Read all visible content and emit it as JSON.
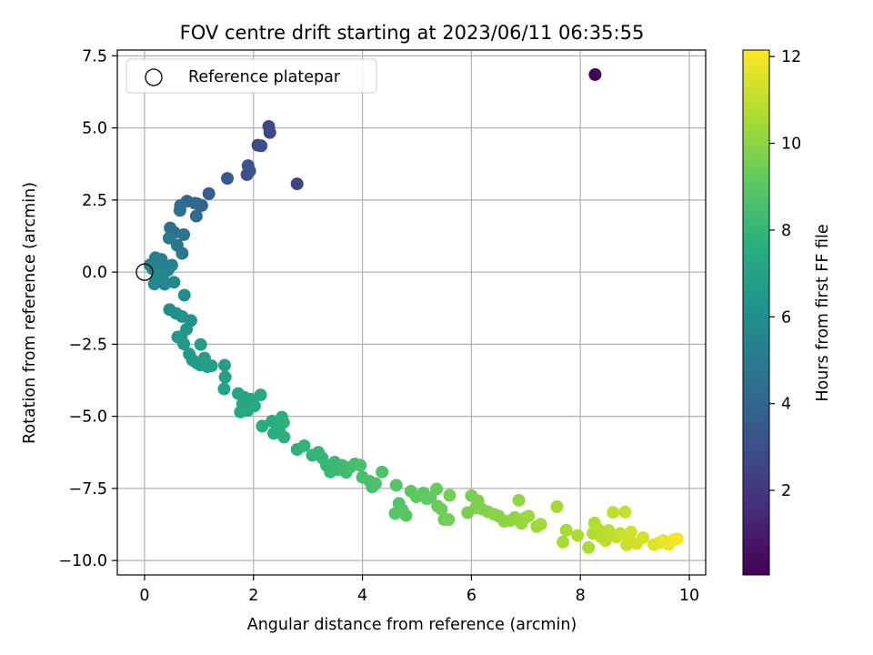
{
  "chart_data": {
    "type": "scatter",
    "title": "FOV centre drift starting at 2023/06/11 06:35:55",
    "xlabel": "Angular distance from reference (arcmin)",
    "ylabel": "Rotation from reference (arcmin)",
    "xlim": [
      -0.5,
      10.3
    ],
    "ylim": [
      -10.5,
      7.7
    ],
    "xticks": [
      0,
      2,
      4,
      6,
      8,
      10
    ],
    "xtick_labels": [
      "0",
      "2",
      "4",
      "6",
      "8",
      "10"
    ],
    "yticks": [
      7.5,
      5.0,
      2.5,
      0.0,
      -2.5,
      -5.0,
      -7.5,
      -10.0
    ],
    "ytick_labels": [
      "7.5",
      "5.0",
      "2.5",
      "0.0",
      "−2.5",
      "−5.0",
      "−7.5",
      "−10.0"
    ],
    "grid": true,
    "legend": {
      "position": "upper-left",
      "entries": [
        {
          "label": "Reference platepar",
          "marker": "open-circle"
        }
      ]
    },
    "reference_point": {
      "x": 0,
      "y": 0
    },
    "colorbar": {
      "label": "Hours from first FF file",
      "colormap": "viridis",
      "range": [
        0.05,
        12.15
      ],
      "ticks": [
        2,
        4,
        6,
        8,
        10,
        12
      ],
      "tick_labels": [
        "2",
        "4",
        "6",
        "8",
        "10",
        "12"
      ]
    },
    "points": [
      [
        8.27,
        6.85,
        0.1
      ],
      [
        2.8,
        3.06,
        2.5
      ],
      [
        2.3,
        4.84,
        2.6
      ],
      [
        2.28,
        5.05,
        2.7
      ],
      [
        2.08,
        4.4,
        2.8
      ],
      [
        2.14,
        4.38,
        2.9
      ],
      [
        1.88,
        3.38,
        3.0
      ],
      [
        1.93,
        3.51,
        3.1
      ],
      [
        1.9,
        3.69,
        3.2
      ],
      [
        1.52,
        3.25,
        3.4
      ],
      [
        1.18,
        2.72,
        3.6
      ],
      [
        0.97,
        2.37,
        3.8
      ],
      [
        1.05,
        2.31,
        3.9
      ],
      [
        0.78,
        2.46,
        4.0
      ],
      [
        0.92,
        2.39,
        4.1
      ],
      [
        0.95,
        1.94,
        4.2
      ],
      [
        0.66,
        2.31,
        4.3
      ],
      [
        0.65,
        2.14,
        4.4
      ],
      [
        0.47,
        1.53,
        4.5
      ],
      [
        0.55,
        1.37,
        4.6
      ],
      [
        0.72,
        1.3,
        4.7
      ],
      [
        0.6,
        0.93,
        4.8
      ],
      [
        0.69,
        0.65,
        4.9
      ],
      [
        0.45,
        1.18,
        5.0
      ],
      [
        0.31,
        0.44,
        5.1
      ],
      [
        0.2,
        0.5,
        5.2
      ],
      [
        0.38,
        0.15,
        5.2
      ],
      [
        0.1,
        0.25,
        5.3
      ],
      [
        0.26,
        0.33,
        5.3
      ],
      [
        0.5,
        0.24,
        5.4
      ],
      [
        0.43,
        0.07,
        5.4
      ],
      [
        0.15,
        0.11,
        5.5
      ],
      [
        0.33,
        -0.2,
        5.5
      ],
      [
        0.22,
        -0.3,
        5.6
      ],
      [
        0.37,
        -0.42,
        5.6
      ],
      [
        0.18,
        -0.41,
        5.7
      ],
      [
        0.54,
        -0.35,
        5.7
      ],
      [
        0.28,
        -0.05,
        5.8
      ],
      [
        0.46,
        -1.3,
        5.9
      ],
      [
        0.73,
        -0.8,
        6.0
      ],
      [
        0.58,
        -1.43,
        6.1
      ],
      [
        0.69,
        -1.54,
        6.2
      ],
      [
        0.85,
        -1.68,
        6.2
      ],
      [
        0.77,
        -1.98,
        6.3
      ],
      [
        0.67,
        -2.24,
        6.3
      ],
      [
        0.72,
        -2.49,
        6.4
      ],
      [
        0.61,
        -2.25,
        6.4
      ],
      [
        0.82,
        -2.84,
        6.5
      ],
      [
        0.88,
        -3.05,
        6.5
      ],
      [
        0.96,
        -3.15,
        6.6
      ],
      [
        1.02,
        -3.22,
        6.6
      ],
      [
        1.15,
        -3.28,
        6.7
      ],
      [
        1.03,
        -2.51,
        6.7
      ],
      [
        1.23,
        -3.25,
        6.8
      ],
      [
        1.1,
        -2.98,
        6.8
      ],
      [
        1.47,
        -3.23,
        6.9
      ],
      [
        1.48,
        -3.64,
        6.9
      ],
      [
        1.46,
        -4.05,
        7.0
      ],
      [
        1.72,
        -4.21,
        7.1
      ],
      [
        1.83,
        -4.34,
        7.1
      ],
      [
        1.95,
        -4.41,
        7.2
      ],
      [
        1.8,
        -4.57,
        7.2
      ],
      [
        1.89,
        -4.8,
        7.3
      ],
      [
        1.76,
        -4.85,
        7.3
      ],
      [
        2.02,
        -4.64,
        7.4
      ],
      [
        2.13,
        -4.26,
        7.4
      ],
      [
        2.16,
        -5.34,
        7.5
      ],
      [
        2.34,
        -5.17,
        7.5
      ],
      [
        2.37,
        -5.59,
        7.6
      ],
      [
        2.47,
        -5.47,
        7.6
      ],
      [
        2.55,
        -5.22,
        7.7
      ],
      [
        2.52,
        -5.03,
        7.7
      ],
      [
        2.56,
        -5.72,
        7.8
      ],
      [
        2.8,
        -6.15,
        7.8
      ],
      [
        2.93,
        -6.02,
        7.9
      ],
      [
        3.08,
        -6.35,
        7.9
      ],
      [
        3.19,
        -6.25,
        8.0
      ],
      [
        3.26,
        -6.44,
        8.0
      ],
      [
        3.34,
        -6.7,
        8.1
      ],
      [
        3.41,
        -6.93,
        8.1
      ],
      [
        3.49,
        -6.59,
        8.2
      ],
      [
        3.55,
        -6.85,
        8.2
      ],
      [
        3.63,
        -6.7,
        8.3
      ],
      [
        3.7,
        -6.94,
        8.3
      ],
      [
        3.77,
        -6.77,
        8.4
      ],
      [
        3.86,
        -6.65,
        8.4
      ],
      [
        3.96,
        -6.7,
        8.5
      ],
      [
        4.0,
        -7.11,
        8.5
      ],
      [
        4.13,
        -7.25,
        8.6
      ],
      [
        4.18,
        -7.45,
        8.6
      ],
      [
        4.24,
        -7.33,
        8.7
      ],
      [
        4.36,
        -6.93,
        8.7
      ],
      [
        4.62,
        -7.39,
        8.8
      ],
      [
        4.67,
        -8.02,
        8.8
      ],
      [
        4.6,
        -8.37,
        8.9
      ],
      [
        4.73,
        -8.24,
        8.9
      ],
      [
        4.8,
        -8.44,
        9.0
      ],
      [
        4.89,
        -7.6,
        9.0
      ],
      [
        4.99,
        -7.79,
        9.1
      ],
      [
        5.12,
        -7.66,
        9.1
      ],
      [
        5.18,
        -7.86,
        9.2
      ],
      [
        5.25,
        -7.81,
        9.2
      ],
      [
        5.36,
        -7.52,
        9.3
      ],
      [
        5.38,
        -8.12,
        9.3
      ],
      [
        5.45,
        -8.22,
        9.4
      ],
      [
        5.5,
        -8.58,
        9.4
      ],
      [
        5.58,
        -8.58,
        9.5
      ],
      [
        5.6,
        -7.74,
        9.5
      ],
      [
        5.93,
        -8.34,
        9.6
      ],
      [
        6.0,
        -7.75,
        9.6
      ],
      [
        6.08,
        -8.17,
        9.7
      ],
      [
        6.12,
        -7.93,
        9.7
      ],
      [
        6.19,
        -8.21,
        9.8
      ],
      [
        6.3,
        -8.31,
        9.8
      ],
      [
        6.42,
        -8.4,
        9.9
      ],
      [
        6.5,
        -8.46,
        9.9
      ],
      [
        6.6,
        -8.64,
        10.0
      ],
      [
        6.72,
        -8.61,
        10.0
      ],
      [
        6.8,
        -8.51,
        10.1
      ],
      [
        6.87,
        -7.91,
        10.1
      ],
      [
        6.92,
        -8.71,
        10.2
      ],
      [
        6.98,
        -8.53,
        10.2
      ],
      [
        7.05,
        -8.46,
        10.3
      ],
      [
        7.2,
        -8.82,
        10.3
      ],
      [
        7.27,
        -8.74,
        10.4
      ],
      [
        7.57,
        -8.13,
        10.4
      ],
      [
        7.68,
        -9.36,
        10.5
      ],
      [
        7.74,
        -8.95,
        10.5
      ],
      [
        7.95,
        -9.13,
        10.6
      ],
      [
        8.15,
        -9.55,
        10.6
      ],
      [
        8.23,
        -9.06,
        10.7
      ],
      [
        8.26,
        -8.7,
        10.7
      ],
      [
        8.33,
        -8.92,
        10.8
      ],
      [
        8.38,
        -9.18,
        10.8
      ],
      [
        8.46,
        -9.31,
        10.9
      ],
      [
        8.52,
        -8.96,
        10.9
      ],
      [
        8.6,
        -8.33,
        11.0
      ],
      [
        8.66,
        -9.18,
        11.0
      ],
      [
        8.73,
        -9.06,
        11.1
      ],
      [
        8.82,
        -8.32,
        11.1
      ],
      [
        8.85,
        -9.46,
        11.2
      ],
      [
        8.88,
        -9.27,
        11.2
      ],
      [
        8.93,
        -9.01,
        11.3
      ],
      [
        9.03,
        -9.41,
        11.3
      ],
      [
        9.15,
        -9.21,
        11.4
      ],
      [
        9.35,
        -9.45,
        11.5
      ],
      [
        9.45,
        -9.38,
        11.6
      ],
      [
        9.52,
        -9.3,
        11.7
      ],
      [
        9.62,
        -9.44,
        11.8
      ],
      [
        9.72,
        -9.27,
        11.9
      ],
      [
        9.78,
        -9.25,
        12.0
      ]
    ]
  }
}
